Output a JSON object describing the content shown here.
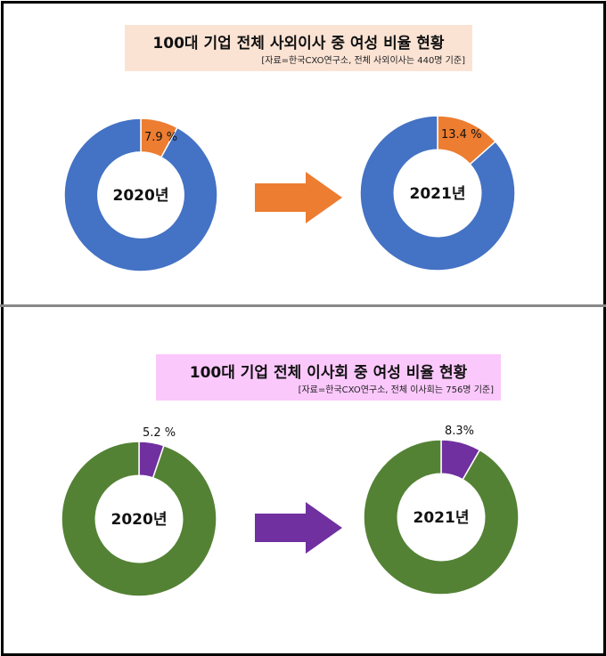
{
  "section1": {
    "title": "100대 기업 전체 사외이사 중 여성 비율 현황",
    "source": "[자료=한국CXO연구소, 전체 사외이사는 440명 기준]",
    "colors": {
      "base": "#4472c4",
      "highlight": "#ed7d31",
      "arrow": "#ed7d31"
    }
  },
  "section2": {
    "title": "100대 기업 전체 이사회 중 여성 비율 현황",
    "source": "[자료=한국CXO연구소, 전체 이사회는 756명 기준]",
    "colors": {
      "base": "#548235",
      "highlight": "#7030a0",
      "arrow": "#7030a0"
    }
  },
  "chart_data": [
    {
      "type": "pie",
      "year": "2020년",
      "values": [
        7.9,
        92.1
      ],
      "label": "7.9 %",
      "colors": [
        "#ed7d31",
        "#4472c4"
      ]
    },
    {
      "type": "pie",
      "year": "2021년",
      "values": [
        13.4,
        86.6
      ],
      "label": "13.4 %",
      "colors": [
        "#ed7d31",
        "#4472c4"
      ]
    },
    {
      "type": "pie",
      "year": "2020년",
      "values": [
        5.2,
        94.8
      ],
      "label": "5.2 %",
      "colors": [
        "#7030a0",
        "#548235"
      ]
    },
    {
      "type": "pie",
      "year": "2021년",
      "values": [
        8.3,
        91.7
      ],
      "label": "8.3%",
      "colors": [
        "#7030a0",
        "#548235"
      ]
    }
  ]
}
